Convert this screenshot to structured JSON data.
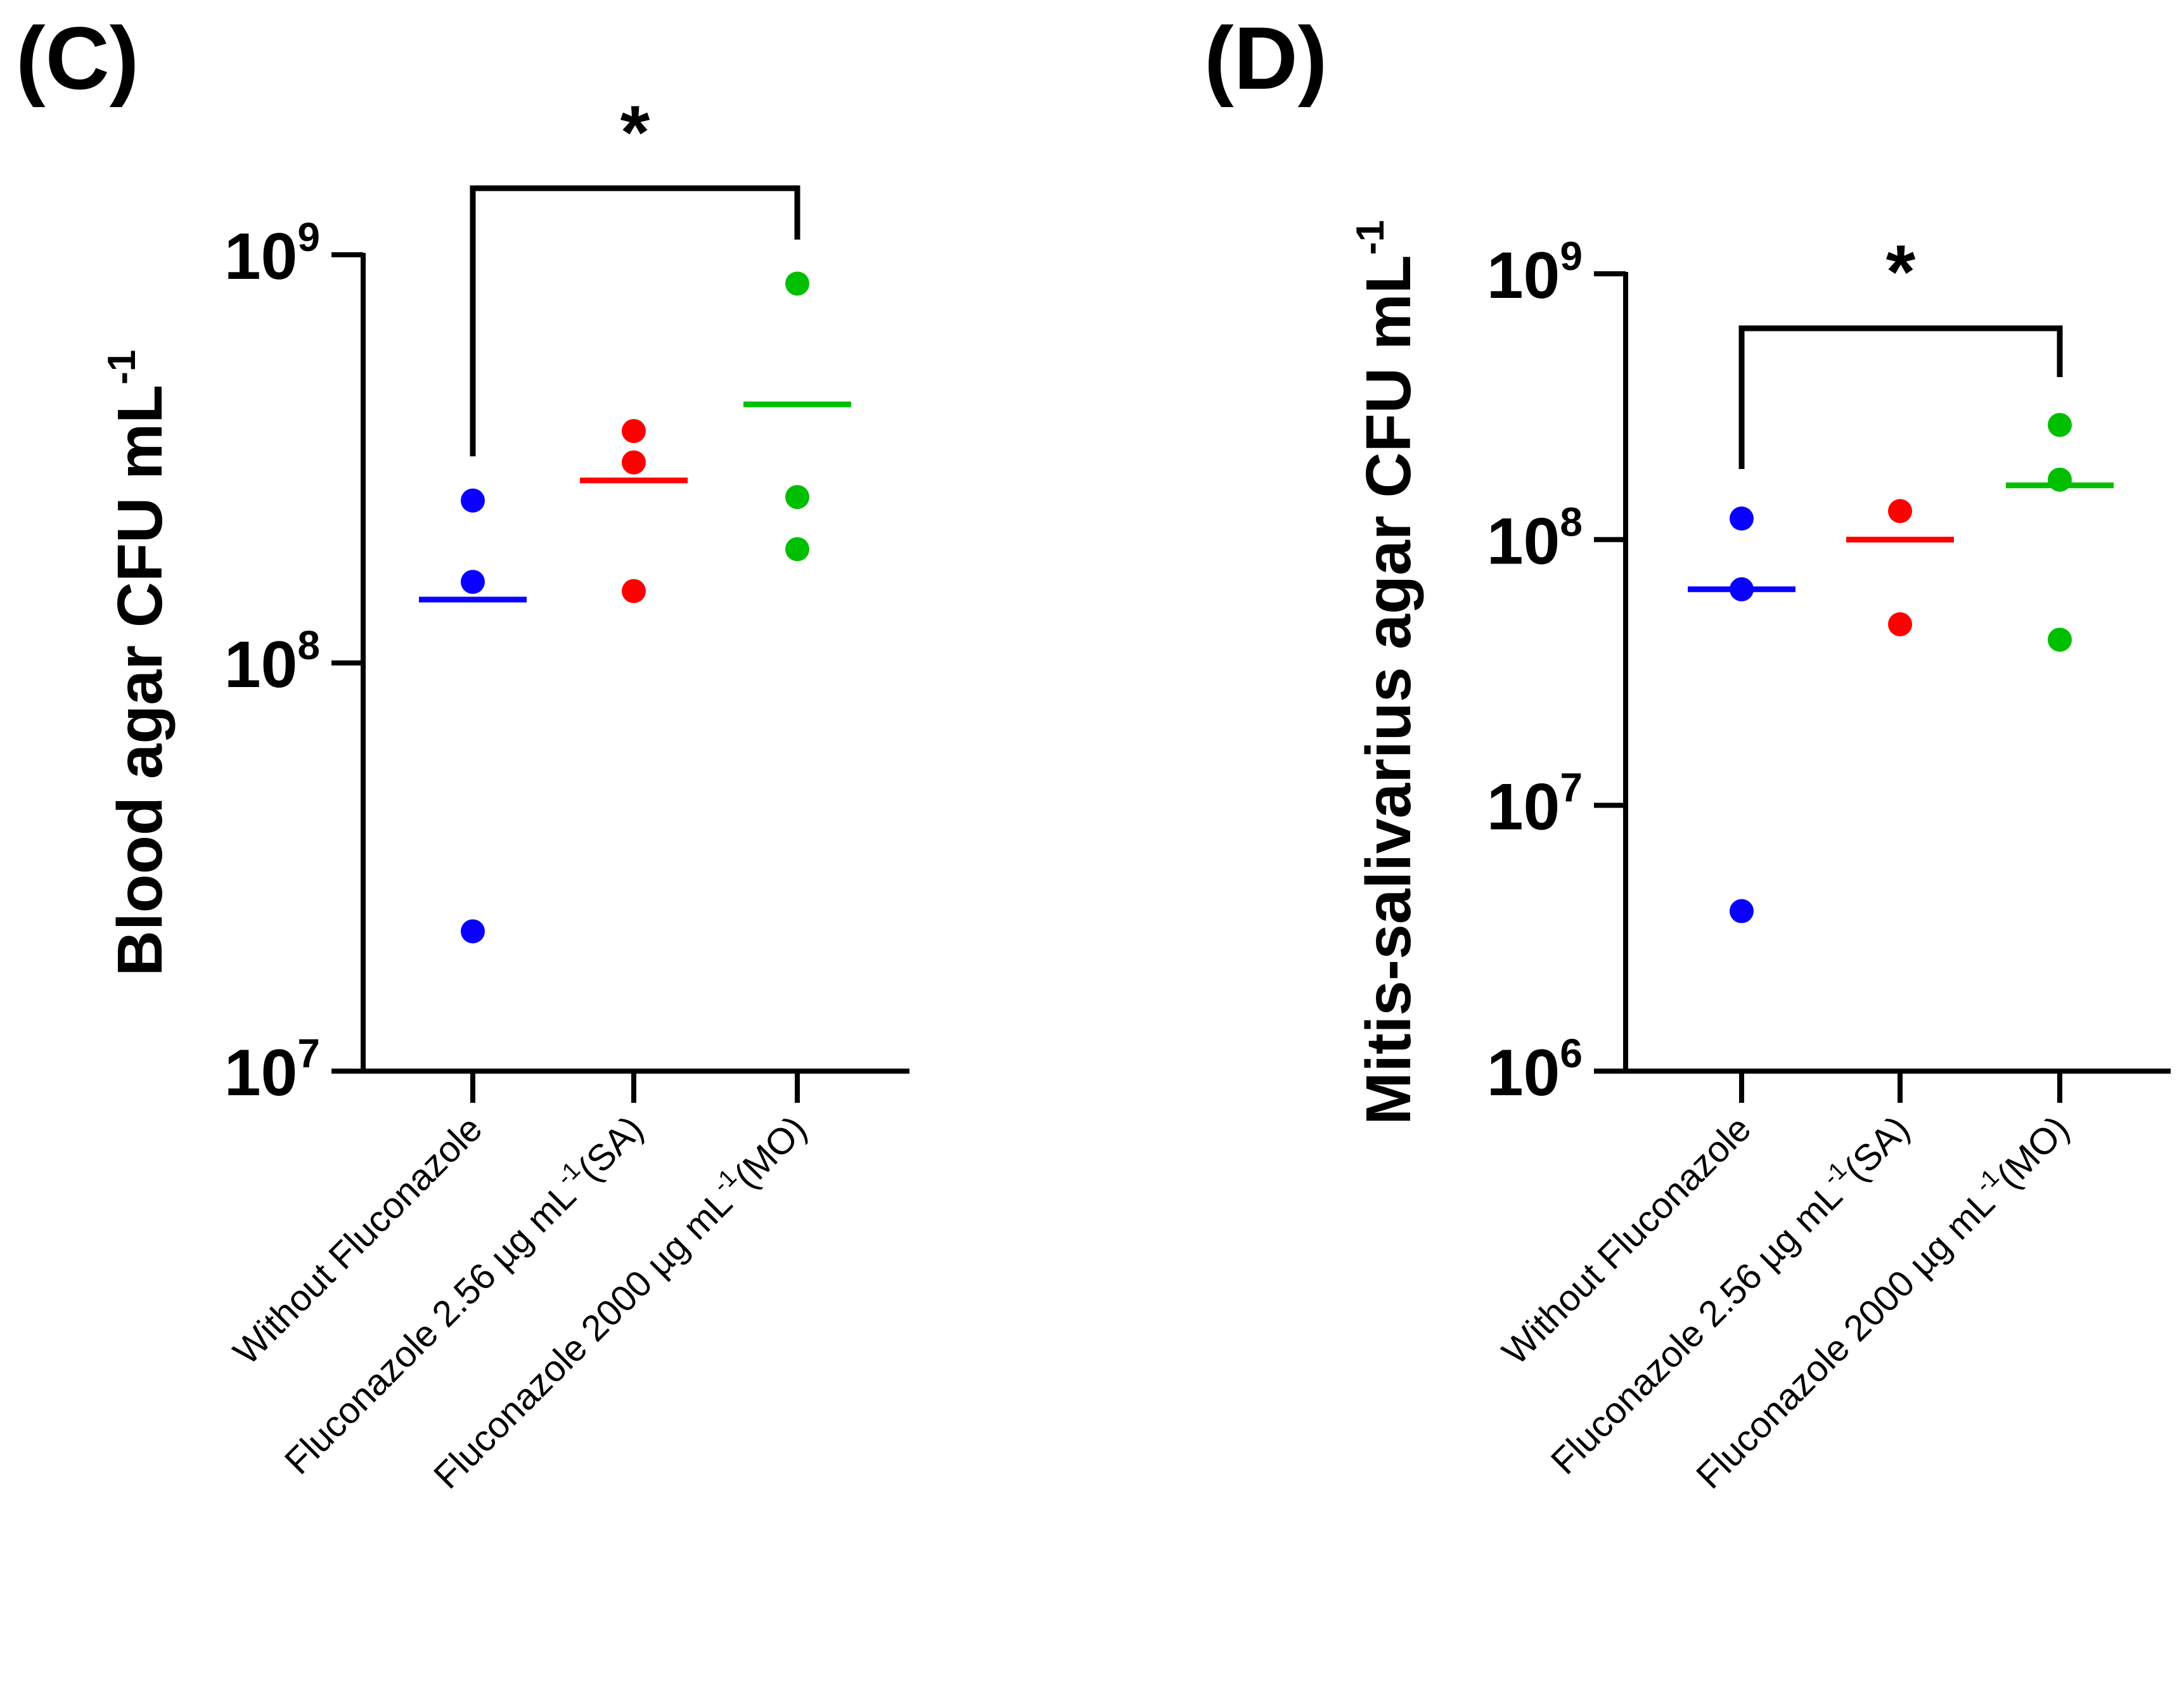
{
  "chart_data": [
    {
      "panel_label": "(C)",
      "type": "scatter",
      "scale": "log",
      "ylabel": "Blood agar CFU mL",
      "ylabel_superscript": "-1",
      "ylim": [
        10000000,
        1000000000
      ],
      "yticks": [
        {
          "value": 10000000,
          "base": "10",
          "exp": "7"
        },
        {
          "value": 100000000,
          "base": "10",
          "exp": "8"
        },
        {
          "value": 1000000000,
          "base": "10",
          "exp": "9"
        }
      ],
      "categories": [
        {
          "parts": [
            {
              "t": "Without Fluconazole"
            }
          ]
        },
        {
          "parts": [
            {
              "t": "Fluconazole 2.56 µg mL"
            },
            {
              "t": "-1",
              "sup": true
            },
            {
              "t": "(SA)"
            }
          ]
        },
        {
          "parts": [
            {
              "t": "Fluconazole 2000 µg mL"
            },
            {
              "t": "-1",
              "sup": true
            },
            {
              "t": "(MO)"
            }
          ]
        }
      ],
      "series": [
        {
          "name": "Without Fluconazole",
          "color": "#0a00ff",
          "points": [
            250000000,
            158000000,
            22000000
          ],
          "mean": 143000000
        },
        {
          "name": "Fluconazole 2.56 µg mL-1 (SA)",
          "color": "#ff0000",
          "points": [
            370000000,
            310000000,
            150000000
          ],
          "mean": 280000000
        },
        {
          "name": "Fluconazole 2000 µg mL-1 (MO)",
          "color": "#00bf00",
          "points": [
            850000000,
            255000000,
            190000000
          ],
          "mean": 430000000
        }
      ],
      "significance": {
        "from": 0,
        "to": 2,
        "label": "*"
      }
    },
    {
      "panel_label": "(D)",
      "type": "scatter",
      "scale": "log",
      "ylabel": "Mitis-salivarius agar CFU mL",
      "ylabel_superscript": "-1",
      "ylim": [
        1000000,
        1000000000
      ],
      "yticks": [
        {
          "value": 1000000,
          "base": "10",
          "exp": "6"
        },
        {
          "value": 10000000,
          "base": "10",
          "exp": "7"
        },
        {
          "value": 100000000,
          "base": "10",
          "exp": "8"
        },
        {
          "value": 1000000000,
          "base": "10",
          "exp": "9"
        }
      ],
      "categories": [
        {
          "parts": [
            {
              "t": "Without Fluconazole"
            }
          ]
        },
        {
          "parts": [
            {
              "t": "Fluconazole 2.56 µg mL"
            },
            {
              "t": "-1",
              "sup": true
            },
            {
              "t": "(SA)"
            }
          ]
        },
        {
          "parts": [
            {
              "t": "Fluconazole 2000 µg mL"
            },
            {
              "t": "-1",
              "sup": true
            },
            {
              "t": "(MO)"
            }
          ]
        }
      ],
      "series": [
        {
          "name": "Without Fluconazole",
          "color": "#0a00ff",
          "points": [
            120000000,
            65000000,
            4000000
          ],
          "mean": 65000000
        },
        {
          "name": "Fluconazole 2.56 µg mL-1 (SA)",
          "color": "#ff0000",
          "points": [
            128000000,
            48000000
          ],
          "mean": 100000000
        },
        {
          "name": "Fluconazole 2000 µg mL-1 (MO)",
          "color": "#00bf00",
          "points": [
            270000000,
            168000000,
            42000000
          ],
          "mean": 160000000
        }
      ],
      "significance": {
        "from": 0,
        "to": 2,
        "label": "*"
      }
    }
  ]
}
